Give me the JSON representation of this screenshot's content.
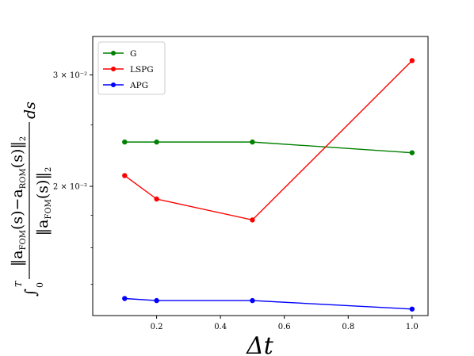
{
  "chart_data": {
    "type": "line",
    "xlabel": "Δt",
    "ylabel": "∫₀ᵀ ‖a_FOM(s) − a_ROM(s)‖₂ / ‖a_FOM(s)‖₂ ds",
    "yscale": "log",
    "xlim": [
      0.0,
      1.05
    ],
    "ylim": [
      0.0125,
      0.0345
    ],
    "xticks": [
      0.2,
      0.4,
      0.6,
      0.8,
      1.0
    ],
    "xtick_labels": [
      "0.2",
      "0.4",
      "0.6",
      "0.8",
      "1.0"
    ],
    "yticks": [
      0.02,
      0.03
    ],
    "ytick_labels": [
      "2 × 10⁻²",
      "3 × 10⁻²"
    ],
    "grid": false,
    "legend_position": "top-left",
    "series": [
      {
        "name": "G",
        "color": "#008000",
        "x": [
          0.1,
          0.2,
          0.5,
          1.0
        ],
        "y": [
          0.0235,
          0.0235,
          0.0235,
          0.0226
        ]
      },
      {
        "name": "LSPG",
        "color": "#ff0000",
        "x": [
          0.1,
          0.2,
          0.5,
          1.0
        ],
        "y": [
          0.0208,
          0.0191,
          0.0177,
          0.0316
        ]
      },
      {
        "name": "APG",
        "color": "#0000ff",
        "x": [
          0.1,
          0.2,
          0.5,
          1.0
        ],
        "y": [
          0.0133,
          0.0132,
          0.0132,
          0.0128
        ]
      }
    ]
  }
}
